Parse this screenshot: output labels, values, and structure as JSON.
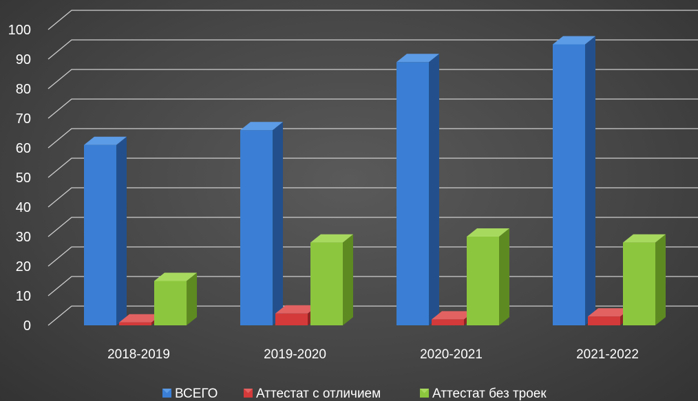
{
  "chart_data": {
    "type": "bar",
    "title": "",
    "xlabel": "",
    "ylabel": "",
    "categories": [
      "2018-2019",
      "2019-2020",
      "2020-2021",
      "2021-2022"
    ],
    "series": [
      {
        "name": "ВСЕГО",
        "values": [
          61,
          66,
          89,
          95
        ]
      },
      {
        "name": "Аттестат с отличием",
        "values": [
          1,
          4,
          2,
          3
        ]
      },
      {
        "name": "Аттестат без троек",
        "values": [
          15,
          28,
          30,
          28
        ]
      }
    ],
    "ylim": [
      0,
      100
    ],
    "yticks": [
      0,
      10,
      20,
      30,
      40,
      50,
      60,
      70,
      80,
      90,
      100
    ],
    "grid": true,
    "legend_position": "bottom",
    "colors": {
      "series": [
        "#3a7fd5",
        "#d43a3a",
        "#8cc63e"
      ],
      "series_side": [
        "#23508c",
        "#8e2424",
        "#5e8a22"
      ],
      "series_top": [
        "#5c9be6",
        "#e26262",
        "#a8d95f"
      ],
      "gridline": "#cfcfcf",
      "text": "#ffffff"
    }
  }
}
